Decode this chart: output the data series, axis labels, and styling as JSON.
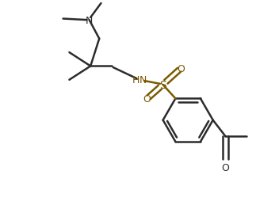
{
  "background_color": "#ffffff",
  "line_color": "#2c2c2c",
  "text_color": "#2c2c2c",
  "so_color": "#7a5a00",
  "line_width": 1.8,
  "font_size": 9,
  "figsize": [
    3.23,
    2.55
  ],
  "dpi": 100,
  "xlim": [
    0,
    10
  ],
  "ylim": [
    0,
    8
  ]
}
